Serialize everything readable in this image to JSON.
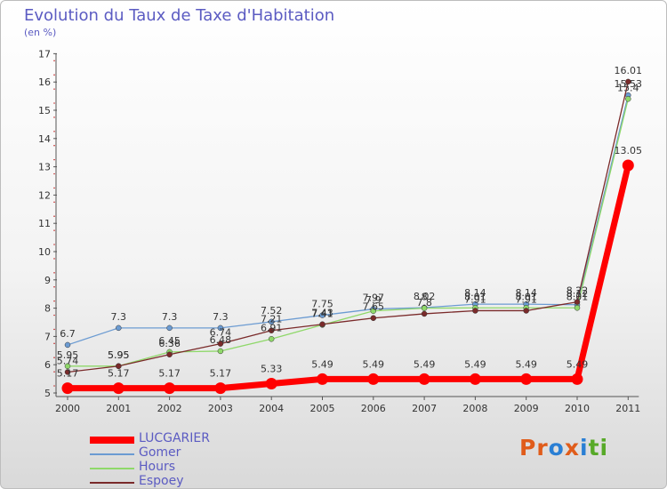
{
  "header": {
    "title": "Evolution du Taux de Taxe d'Habitation",
    "subtitle": "(en %)"
  },
  "logo": {
    "letters": [
      "P",
      "r",
      "o",
      "x",
      "i",
      "t",
      "i"
    ],
    "colors": [
      "#e05c1a",
      "#e05c1a",
      "#2a7fd4",
      "#e05c1a",
      "#2a7fd4",
      "#57a928",
      "#57a928"
    ]
  },
  "chart_data": {
    "type": "line",
    "title": "Evolution du Taux de Taxe d'Habitation",
    "ylabel": "(en %)",
    "xlabel": "",
    "x": [
      "2000",
      "2001",
      "2002",
      "2003",
      "2004",
      "2005",
      "2006",
      "2007",
      "2008",
      "2009",
      "2010",
      "2011"
    ],
    "ylim": [
      5,
      17
    ],
    "yticks": [
      5,
      6,
      7,
      8,
      9,
      10,
      11,
      12,
      13,
      14,
      15,
      16,
      17
    ],
    "grid": false,
    "legend_position": "bottom-left",
    "series": [
      {
        "name": "LUCGARIER",
        "color": "#ff0000",
        "line_width": 7,
        "marker_radius": 6.5,
        "values": [
          5.17,
          5.17,
          5.17,
          5.17,
          5.33,
          5.49,
          5.49,
          5.49,
          5.49,
          5.49,
          5.49,
          13.05
        ],
        "labels": [
          "5.17",
          "5.17",
          "5.17",
          "5.17",
          "5.33",
          "5.49",
          "5.49",
          "5.49",
          "5.49",
          "5.49",
          "5.49",
          "13.05"
        ]
      },
      {
        "name": "Gomer",
        "color": "#6b9bd2",
        "line_width": 1.3,
        "marker_radius": 3,
        "values": [
          6.7,
          7.3,
          7.3,
          7.3,
          7.52,
          7.75,
          7.97,
          8.02,
          8.14,
          8.14,
          8.12,
          15.53
        ],
        "labels": [
          "6.7",
          "7.3",
          "7.3",
          "7.3",
          "7.52",
          "7.75",
          "7.97",
          "8.02",
          "8.14",
          "8.14",
          "8.12",
          "15.53"
        ]
      },
      {
        "name": "Hours",
        "color": "#8fd86a",
        "line_width": 1.3,
        "marker_radius": 3,
        "values": [
          5.95,
          5.95,
          6.45,
          6.48,
          6.91,
          7.41,
          7.9,
          8.0,
          8.01,
          8.01,
          8.01,
          15.4
        ],
        "labels": [
          "5.95",
          "5.95",
          "6.45",
          "6.48",
          "6.91",
          "7.41",
          "7.9",
          "8",
          "8.01",
          "8.01",
          "8.01",
          "15.4"
        ]
      },
      {
        "name": "Espoey",
        "color": "#7a2a2a",
        "line_width": 1.3,
        "marker_radius": 3,
        "values": [
          5.74,
          5.95,
          6.36,
          6.74,
          7.21,
          7.43,
          7.65,
          7.8,
          7.91,
          7.91,
          8.22,
          16.01
        ],
        "labels": [
          "5.74",
          "5.95",
          "6.36",
          "6.74",
          "7.21",
          "7.43",
          "7.65",
          "7.8",
          "7.91",
          "7.91",
          "8.22",
          "16.01"
        ]
      }
    ]
  }
}
